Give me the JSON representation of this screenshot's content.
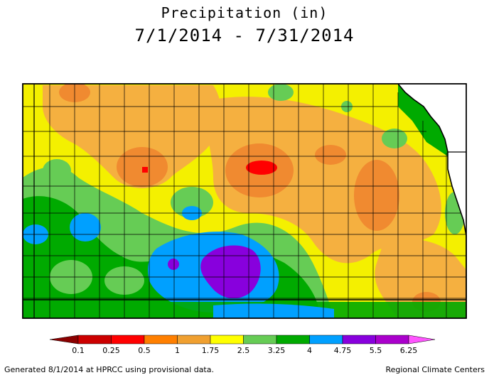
{
  "title": "Precipitation (in)",
  "subtitle": "7/1/2014 - 7/31/2014",
  "legend": {
    "thresholds": [
      "0.1",
      "0.25",
      "0.5",
      "1",
      "1.75",
      "2.5",
      "3.25",
      "4",
      "4.75",
      "5.5",
      "6.25"
    ],
    "colors": [
      "#990000",
      "#cc0000",
      "#ff0000",
      "#ff7f00",
      "#f0a030",
      "#ffff00",
      "#66cc55",
      "#00aa00",
      "#00a0ff",
      "#8800dd",
      "#aa00cc",
      "#ff44ff"
    ],
    "low_color": "#8b0000",
    "high_color": "#ff55ff"
  },
  "colors": {
    "red": "#ff0000",
    "orange_dark": "#f08a30",
    "orange": "#f5b040",
    "yellow": "#f4f000",
    "light_green": "#66cc55",
    "green": "#00aa00",
    "blue": "#00a0ff",
    "purple": "#8800dd",
    "border": "#000000"
  },
  "footer": {
    "left": "Generated 8/1/2014 at HPRCC using provisional data.",
    "right": "Regional Climate Centers"
  }
}
